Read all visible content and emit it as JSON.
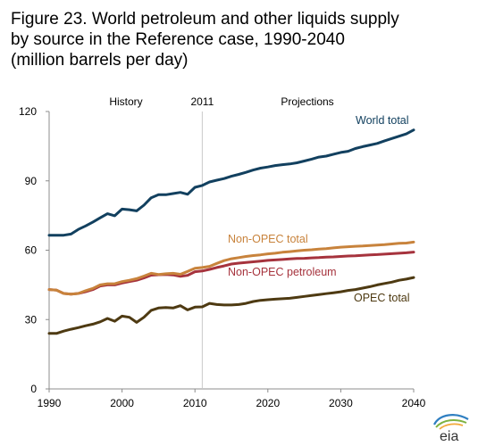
{
  "figure": {
    "title_lines": [
      "Figure 23. World petroleum and other liquids supply",
      "by source in the Reference case, 1990-2040",
      "(million barrels per day)"
    ],
    "logo_text": "eia"
  },
  "chart_data": {
    "type": "line",
    "xlim": [
      1990,
      2040
    ],
    "ylim": [
      0,
      120
    ],
    "x_ticks": [
      1990,
      2000,
      2010,
      2020,
      2030,
      2040
    ],
    "y_ticks": [
      0,
      30,
      60,
      90,
      120
    ],
    "divider": {
      "x": 2011,
      "label": "2011"
    },
    "period_labels": {
      "left": "History",
      "right": "Projections"
    },
    "grid": false,
    "colors": {
      "World total": "#12405f",
      "Non-OPEC total": "#c8833c",
      "Non-OPEC petroleum": "#a6333d",
      "OPEC total": "#4e3a12"
    },
    "series": [
      {
        "name": "World total",
        "x": [
          1990,
          1991,
          1992,
          1993,
          1994,
          1995,
          1996,
          1997,
          1998,
          1999,
          2000,
          2001,
          2002,
          2003,
          2004,
          2005,
          2006,
          2007,
          2008,
          2009,
          2010,
          2011,
          2012,
          2013,
          2014,
          2015,
          2016,
          2017,
          2018,
          2019,
          2020,
          2021,
          2022,
          2023,
          2024,
          2025,
          2026,
          2027,
          2028,
          2029,
          2030,
          2031,
          2032,
          2033,
          2034,
          2035,
          2036,
          2037,
          2038,
          2039,
          2040
        ],
        "values": [
          66.5,
          66.5,
          66.5,
          67,
          69,
          70.5,
          72.2,
          74,
          75.8,
          74.9,
          77.8,
          77.5,
          77,
          79.5,
          82.7,
          84,
          84,
          84.5,
          85,
          84.2,
          87.2,
          88,
          89.5,
          90.3,
          91,
          92,
          92.8,
          93.7,
          94.7,
          95.5,
          96,
          96.6,
          97,
          97.3,
          97.8,
          98.6,
          99.4,
          100.3,
          100.7,
          101.5,
          102.3,
          102.8,
          104,
          104.8,
          105.5,
          106.2,
          107.3,
          108.3,
          109.3,
          110.3,
          112
        ]
      },
      {
        "name": "Non-OPEC total",
        "x": [
          1990,
          1991,
          1992,
          1993,
          1994,
          1995,
          1996,
          1997,
          1998,
          1999,
          2000,
          2001,
          2002,
          2003,
          2004,
          2005,
          2006,
          2007,
          2008,
          2009,
          2010,
          2011,
          2012,
          2013,
          2014,
          2015,
          2016,
          2017,
          2018,
          2019,
          2020,
          2021,
          2022,
          2023,
          2024,
          2025,
          2026,
          2027,
          2028,
          2029,
          2030,
          2031,
          2032,
          2033,
          2034,
          2035,
          2036,
          2037,
          2038,
          2039,
          2040
        ],
        "values": [
          43,
          42.7,
          41.3,
          41,
          41.3,
          42.5,
          43.5,
          45,
          45.5,
          45.5,
          46.4,
          47,
          47.7,
          48.8,
          50,
          49.5,
          49.8,
          50,
          49.6,
          50.8,
          52.2,
          52.5,
          53,
          54.3,
          55.5,
          56.3,
          56.8,
          57.3,
          57.7,
          58,
          58.4,
          58.7,
          59.1,
          59.4,
          59.7,
          60,
          60.2,
          60.5,
          60.7,
          61,
          61.3,
          61.5,
          61.7,
          61.8,
          62,
          62.2,
          62.4,
          62.7,
          63,
          63.1,
          63.5
        ]
      },
      {
        "name": "Non-OPEC petroleum",
        "x": [
          1990,
          1991,
          1992,
          1993,
          1994,
          1995,
          1996,
          1997,
          1998,
          1999,
          2000,
          2001,
          2002,
          2003,
          2004,
          2005,
          2006,
          2007,
          2008,
          2009,
          2010,
          2011,
          2012,
          2013,
          2014,
          2015,
          2016,
          2017,
          2018,
          2019,
          2020,
          2021,
          2022,
          2023,
          2024,
          2025,
          2026,
          2027,
          2028,
          2029,
          2030,
          2031,
          2032,
          2033,
          2034,
          2035,
          2036,
          2037,
          2038,
          2039,
          2040
        ],
        "values": [
          43,
          42.7,
          41.3,
          41,
          41.3,
          42,
          43,
          44.5,
          45,
          45,
          45.8,
          46.4,
          47,
          48,
          49.2,
          49.4,
          49.5,
          49.3,
          48.7,
          49.1,
          50.7,
          51,
          51.7,
          52.5,
          53.2,
          54,
          54.4,
          54.7,
          55,
          55.3,
          55.6,
          55.8,
          56,
          56.2,
          56.4,
          56.5,
          56.7,
          56.8,
          57,
          57.1,
          57.3,
          57.5,
          57.6,
          57.8,
          58,
          58.1,
          58.3,
          58.5,
          58.7,
          58.9,
          59.2
        ]
      },
      {
        "name": "OPEC total",
        "x": [
          1990,
          1991,
          1992,
          1993,
          1994,
          1995,
          1996,
          1997,
          1998,
          1999,
          2000,
          2001,
          2002,
          2003,
          2004,
          2005,
          2006,
          2007,
          2008,
          2009,
          2010,
          2011,
          2012,
          2013,
          2014,
          2015,
          2016,
          2017,
          2018,
          2019,
          2020,
          2021,
          2022,
          2023,
          2024,
          2025,
          2026,
          2027,
          2028,
          2029,
          2030,
          2031,
          2032,
          2033,
          2034,
          2035,
          2036,
          2037,
          2038,
          2039,
          2040
        ],
        "values": [
          24,
          24,
          25,
          25.8,
          26.5,
          27.3,
          28,
          29,
          30.5,
          29.3,
          31.5,
          31,
          28.8,
          31,
          34,
          35,
          35.2,
          35,
          36,
          34.2,
          35.4,
          35.5,
          37,
          36.5,
          36.3,
          36.3,
          36.5,
          37,
          37.8,
          38.3,
          38.6,
          38.8,
          39,
          39.2,
          39.6,
          40,
          40.4,
          40.8,
          41.2,
          41.6,
          42,
          42.6,
          43,
          43.6,
          44.2,
          45,
          45.6,
          46.2,
          47,
          47.5,
          48.2
        ]
      }
    ],
    "series_labels": [
      {
        "series": "World total",
        "text": "World total"
      },
      {
        "series": "Non-OPEC total",
        "text": "Non-OPEC total"
      },
      {
        "series": "Non-OPEC petroleum",
        "text": "Non-OPEC petroleum"
      },
      {
        "series": "OPEC total",
        "text": "OPEC total"
      }
    ]
  }
}
